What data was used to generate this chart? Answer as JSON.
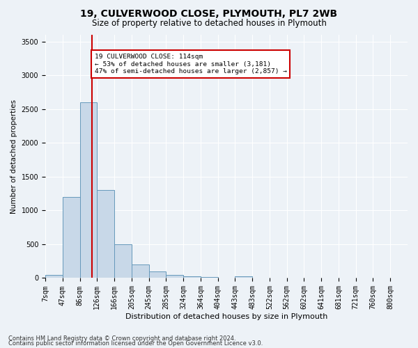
{
  "title1": "19, CULVERWOOD CLOSE, PLYMOUTH, PL7 2WB",
  "title2": "Size of property relative to detached houses in Plymouth",
  "xlabel": "Distribution of detached houses by size in Plymouth",
  "ylabel": "Number of detached properties",
  "bin_labels": [
    "7sqm",
    "47sqm",
    "86sqm",
    "126sqm",
    "166sqm",
    "205sqm",
    "245sqm",
    "285sqm",
    "324sqm",
    "364sqm",
    "404sqm",
    "443sqm",
    "483sqm",
    "522sqm",
    "562sqm",
    "602sqm",
    "641sqm",
    "681sqm",
    "721sqm",
    "760sqm",
    "800sqm"
  ],
  "bar_values": [
    50,
    1200,
    2600,
    1300,
    500,
    200,
    100,
    50,
    30,
    20,
    5,
    30,
    5,
    5,
    5,
    5,
    5,
    5,
    5,
    5,
    0
  ],
  "bar_color": "#c8d8e8",
  "bar_edge_color": "#6699bb",
  "property_bin": 2,
  "red_line_x": 2.7,
  "red_line_color": "#cc0000",
  "annotation_text": "19 CULVERWOOD CLOSE: 114sqm\n← 53% of detached houses are smaller (3,181)\n47% of semi-detached houses are larger (2,857) →",
  "annotation_box_color": "#ffffff",
  "annotation_border_color": "#cc0000",
  "ylim": [
    0,
    3600
  ],
  "yticks": [
    0,
    500,
    1000,
    1500,
    2000,
    2500,
    3000,
    3500
  ],
  "footnote1": "Contains HM Land Registry data © Crown copyright and database right 2024.",
  "footnote2": "Contains public sector information licensed under the Open Government Licence v3.0.",
  "bg_color": "#edf2f7",
  "plot_bg_color": "#edf2f7",
  "grid_color": "#ffffff",
  "title1_fontsize": 10,
  "title2_fontsize": 8.5,
  "ylabel_fontsize": 7.5,
  "xlabel_fontsize": 8,
  "tick_fontsize": 7,
  "footnote_fontsize": 6
}
